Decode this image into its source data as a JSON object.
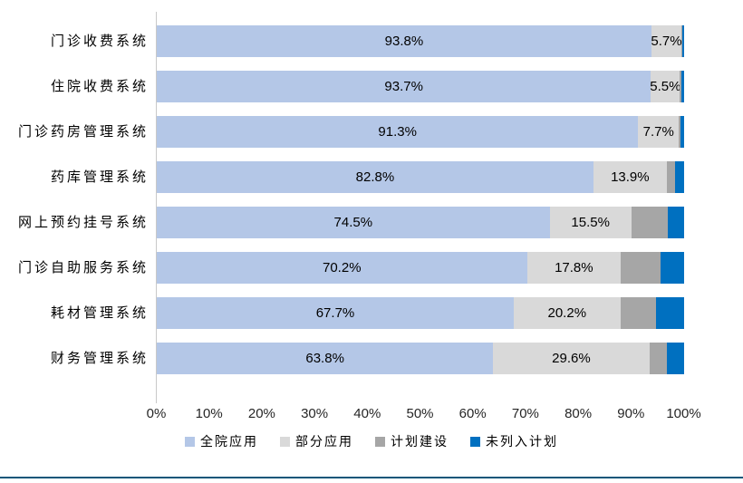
{
  "chart_data": {
    "type": "bar",
    "orientation": "horizontal",
    "stacked": true,
    "unit": "%",
    "title": "",
    "categories": [
      "门诊收费系统",
      "住院收费系统",
      "门诊药房管理系统",
      "药库管理系统",
      "网上预约挂号系统",
      "门诊自助服务系统",
      "耗材管理系统",
      "财务管理系统"
    ],
    "series": [
      {
        "name": "全院应用",
        "color": "#B4C7E7",
        "labels_shown": true,
        "values": [
          93.8,
          93.7,
          91.3,
          82.8,
          74.5,
          70.2,
          67.7,
          63.8
        ]
      },
      {
        "name": "部分应用",
        "color": "#D9D9D9",
        "labels_shown": true,
        "values": [
          5.7,
          5.5,
          7.7,
          13.9,
          15.5,
          17.8,
          20.2,
          29.6
        ]
      },
      {
        "name": "计划建设",
        "color": "#A6A6A6",
        "labels_shown": false,
        "values": [
          0.2,
          0.3,
          0.3,
          1.5,
          6.9,
          7.5,
          6.7,
          3.3
        ]
      },
      {
        "name": "未列入计划",
        "color": "#0070C0",
        "labels_shown": false,
        "values": [
          0.3,
          0.5,
          0.7,
          1.8,
          3.1,
          4.5,
          5.4,
          3.3
        ]
      }
    ],
    "x_ticks": [
      "0%",
      "10%",
      "20%",
      "30%",
      "40%",
      "50%",
      "60%",
      "70%",
      "80%",
      "90%",
      "100%"
    ],
    "xlim": [
      0,
      100
    ],
    "grid": false,
    "legend_position": "bottom"
  },
  "styles": {
    "background": "#FFFFFF",
    "axis_line_color": "#C9C9C9",
    "tick_label_color": "#262626",
    "data_label_color": "#000000",
    "bottom_divider_color": "#0F5679"
  }
}
